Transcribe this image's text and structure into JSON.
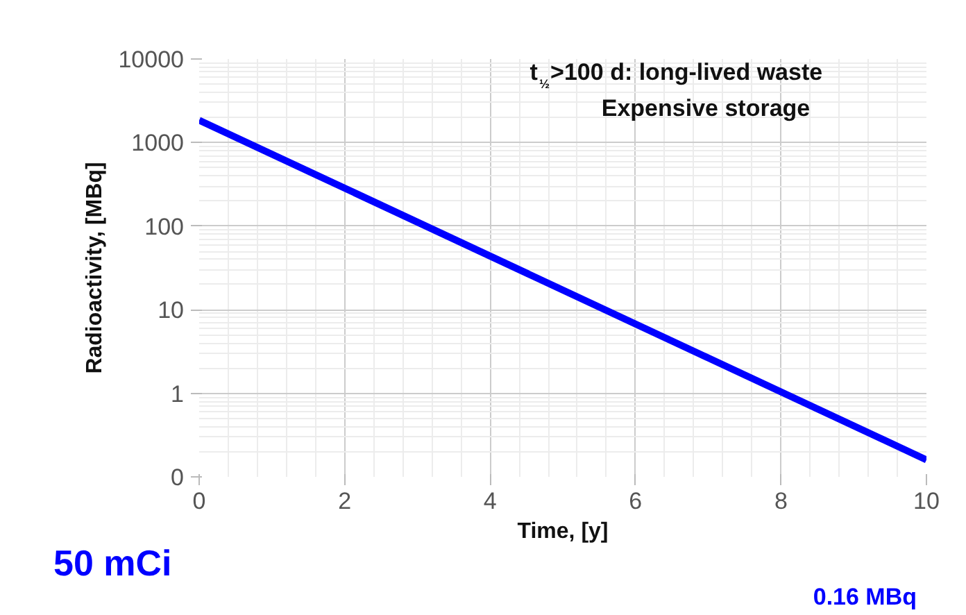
{
  "chart_data": {
    "type": "line",
    "xlabel": "Time, [y]",
    "ylabel": "Radioactivity, [MBq]",
    "x": [
      0,
      10
    ],
    "series": [
      {
        "color": "#0000ff",
        "values": [
          1850,
          0.16
        ]
      }
    ],
    "log": "y",
    "xlim": [
      0,
      10
    ],
    "xticks": [
      0,
      2,
      4,
      6,
      8,
      10
    ],
    "ylim": [
      0.1,
      10000
    ],
    "yticks": [
      {
        "value": 0.1,
        "label": "0"
      },
      1,
      10,
      100,
      1000,
      10000
    ],
    "grid": true,
    "marker": "none",
    "line_style": "solid",
    "annotations": [
      "t$_{½}$>100 d: long-lived waste\nExpensive storage",
      "50 mCi",
      "0.16 MBq"
    ]
  }
}
